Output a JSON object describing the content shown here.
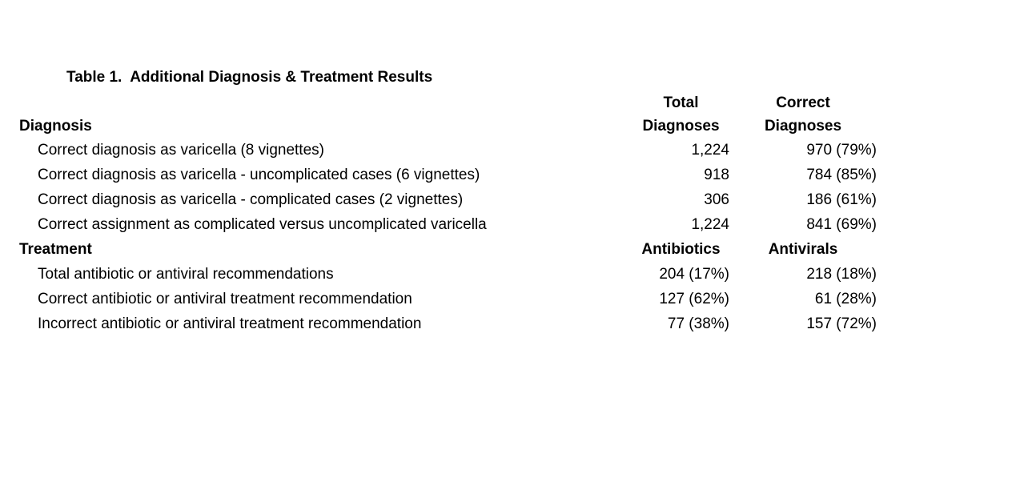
{
  "page": {
    "background_color": "#ffffff",
    "text_color": "#000000"
  },
  "title": "Table 1.  Additional Diagnosis & Treatment Results",
  "table": {
    "diagnosis_section": {
      "label": "Diagnosis",
      "columns": [
        {
          "line1": "Total",
          "line2": "Diagnoses"
        },
        {
          "line1": "Correct",
          "line2": "Diagnoses"
        }
      ],
      "rows": [
        {
          "label": "Correct diagnosis as varicella (8 vignettes)",
          "total": "1,224",
          "correct": "970 (79%)"
        },
        {
          "label": "Correct diagnosis as varicella - uncomplicated cases (6 vignettes)",
          "total": "918",
          "correct": "784 (85%)"
        },
        {
          "label": "Correct diagnosis as varicella - complicated cases (2 vignettes)",
          "total": "306",
          "correct": "186 (61%)"
        },
        {
          "label": "Correct assignment as complicated versus uncomplicated varicella",
          "total": "1,224",
          "correct": "841 (69%)"
        }
      ]
    },
    "treatment_section": {
      "label": "Treatment",
      "columns": [
        {
          "line1": "Antibiotics"
        },
        {
          "line1": "Antivirals"
        }
      ],
      "rows": [
        {
          "label": "Total antibiotic or antiviral recommendations",
          "antibiotics": "204 (17%)",
          "antivirals": "218 (18%)"
        },
        {
          "label": "Correct antibiotic or antiviral treatment recommendation",
          "antibiotics": "127 (62%)",
          "antivirals": "61 (28%)"
        },
        {
          "label": "Incorrect antibiotic or antiviral treatment recommendation",
          "antibiotics": "77 (38%)",
          "antivirals": "157 (72%)"
        }
      ]
    }
  }
}
